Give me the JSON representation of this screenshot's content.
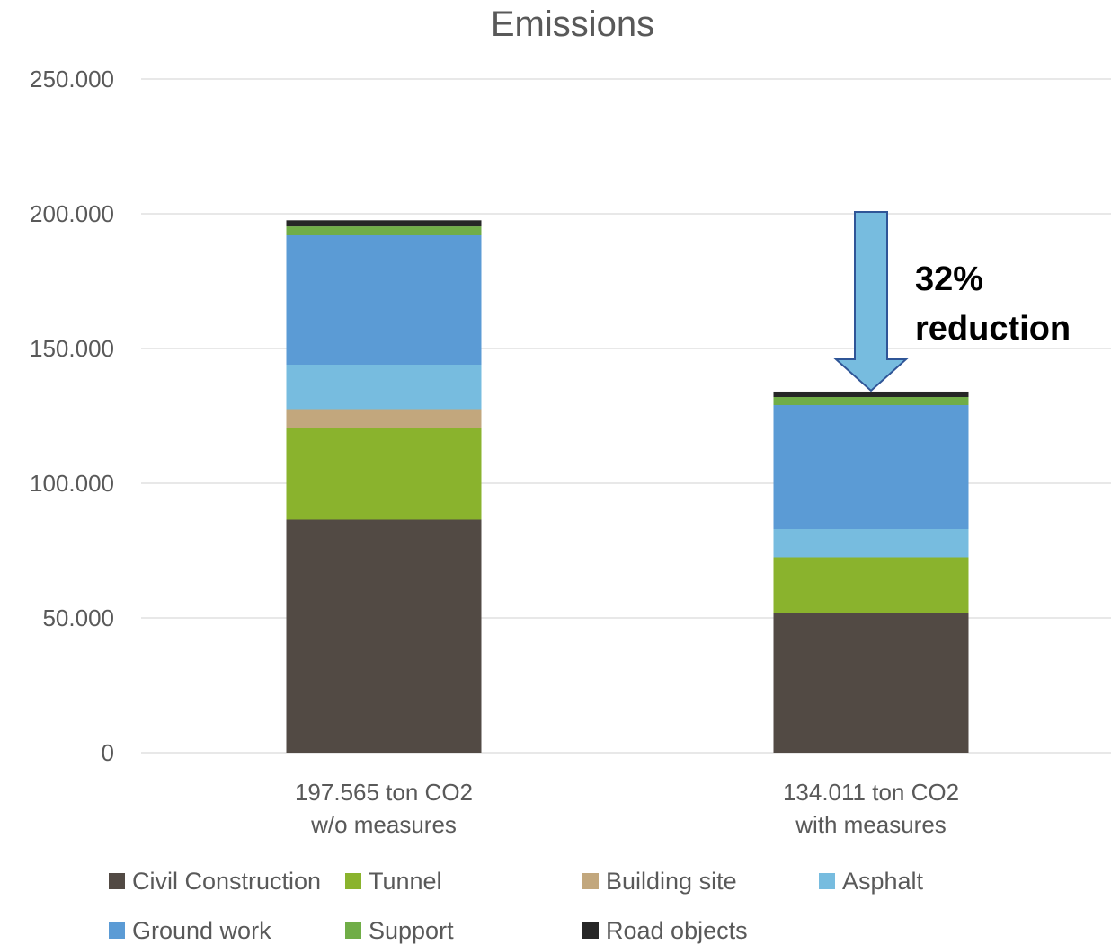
{
  "chart_data": {
    "type": "bar",
    "stacked": true,
    "title": "Emissions",
    "xlabel": "",
    "ylabel": "",
    "ylim": [
      0,
      250000
    ],
    "yticks": [
      0,
      50000,
      100000,
      150000,
      200000,
      250000
    ],
    "ytick_labels": [
      "0",
      "50.000",
      "100.000",
      "150.000",
      "200.000",
      "250.000"
    ],
    "grid": true,
    "legend_position": "bottom",
    "categories": [
      [
        "197.565 ton CO2",
        "w/o measures"
      ],
      [
        "134.011 ton CO2",
        "with measures"
      ]
    ],
    "series": [
      {
        "name": "Civil Construction",
        "color": "#524a44",
        "values": [
          86500,
          52000
        ]
      },
      {
        "name": "Tunnel",
        "color": "#8ab32d",
        "values": [
          34000,
          20500
        ]
      },
      {
        "name": "Building site",
        "color": "#c2a77d",
        "values": [
          7000,
          0
        ]
      },
      {
        "name": "Asphalt",
        "color": "#77bcdf",
        "values": [
          16500,
          10500
        ]
      },
      {
        "name": "Ground work",
        "color": "#5b9bd5",
        "values": [
          48000,
          46000
        ]
      },
      {
        "name": "Support",
        "color": "#70ad47",
        "values": [
          3300,
          3000
        ]
      },
      {
        "name": "Road objects",
        "color": "#262626",
        "values": [
          2265,
          2011
        ]
      }
    ],
    "annotation": {
      "lines": [
        "32%",
        "reduction"
      ],
      "arrow_color": "#77bcdf",
      "arrow_outline": "#2f5597"
    }
  }
}
